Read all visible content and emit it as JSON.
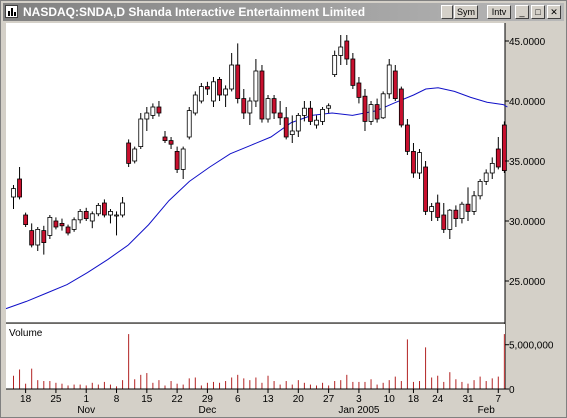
{
  "window": {
    "title": "NASDAQ:SNDA,D Shanda Interactive Entertainment Limited",
    "buttons": {
      "sym": "Sym",
      "intv": "Intv"
    }
  },
  "colors": {
    "up": "#ffffff",
    "down": "#c8102e",
    "ma": "#1010c8",
    "volume": "#b22222",
    "plot_bg": "#ffffff"
  },
  "chart_data": [
    {
      "type": "candlestick",
      "title": "NASDAQ:SNDA,D Shanda Interactive Entertainment Limited",
      "ylim": [
        21.5,
        46.5
      ],
      "y_ticks": [
        25,
        30,
        35,
        40,
        45
      ],
      "y_tick_labels": [
        "25.0000",
        "30.0000",
        "35.0000",
        "40.0000",
        "45.0000"
      ],
      "x_tick_labels": [
        "18",
        "25",
        "1",
        "8",
        "15",
        "22",
        "29",
        "6",
        "13",
        "20",
        "27",
        "3",
        "10",
        "18",
        "24",
        "31",
        "7"
      ],
      "x_tick_index": [
        2,
        7,
        12,
        17,
        22,
        27,
        32,
        37,
        42,
        47,
        52,
        57,
        62,
        66,
        70,
        75,
        80
      ],
      "month_labels": [
        "Nov",
        "Dec",
        "Jan 2005",
        "Feb"
      ],
      "month_index": [
        12,
        32,
        57,
        78
      ],
      "candles": [
        [
          32.0,
          33.0,
          31.0,
          32.7
        ],
        [
          33.5,
          34.5,
          31.8,
          32.0
        ],
        [
          30.5,
          30.7,
          29.5,
          29.7
        ],
        [
          29.2,
          29.8,
          27.8,
          28.0
        ],
        [
          28.0,
          29.5,
          27.5,
          29.3
        ],
        [
          29.2,
          29.6,
          27.2,
          28.2
        ],
        [
          28.8,
          30.5,
          28.5,
          30.3
        ],
        [
          30.0,
          30.3,
          29.3,
          29.5
        ],
        [
          29.8,
          30.2,
          29.2,
          29.6
        ],
        [
          29.5,
          29.7,
          28.8,
          29.0
        ],
        [
          29.3,
          30.3,
          29.1,
          30.1
        ],
        [
          30.1,
          31.0,
          29.8,
          30.8
        ],
        [
          30.8,
          31.1,
          30.0,
          30.2
        ],
        [
          30.0,
          30.8,
          29.4,
          30.6
        ],
        [
          30.6,
          31.5,
          30.4,
          31.3
        ],
        [
          31.5,
          31.8,
          30.3,
          30.5
        ],
        [
          30.5,
          31.0,
          29.8,
          30.8
        ],
        [
          30.5,
          30.8,
          28.8,
          30.5
        ],
        [
          30.5,
          32.0,
          30.3,
          31.5
        ],
        [
          36.5,
          36.8,
          34.5,
          34.8
        ],
        [
          35.0,
          36.2,
          34.8,
          36.0
        ],
        [
          36.2,
          39.0,
          36.0,
          38.5
        ],
        [
          38.5,
          39.5,
          37.5,
          39.0
        ],
        [
          38.8,
          39.8,
          38.5,
          39.5
        ],
        [
          39.5,
          40.0,
          38.7,
          39.0
        ],
        [
          37.0,
          37.5,
          36.5,
          36.7
        ],
        [
          36.7,
          37.0,
          36.0,
          36.4
        ],
        [
          35.8,
          36.2,
          34.0,
          34.3
        ],
        [
          34.3,
          36.2,
          33.5,
          36.0
        ],
        [
          37.0,
          39.5,
          36.8,
          39.2
        ],
        [
          39.0,
          40.8,
          38.8,
          40.5
        ],
        [
          40.0,
          41.5,
          39.8,
          41.2
        ],
        [
          41.2,
          41.6,
          40.5,
          41.0
        ],
        [
          40.0,
          42.0,
          39.5,
          41.6
        ],
        [
          41.8,
          42.0,
          40.0,
          40.5
        ],
        [
          40.5,
          41.3,
          39.5,
          41.0
        ],
        [
          41.0,
          44.0,
          40.8,
          43.0
        ],
        [
          43.0,
          44.8,
          39.8,
          40.2
        ],
        [
          40.2,
          41.0,
          38.5,
          39.0
        ],
        [
          39.0,
          40.3,
          38.0,
          40.0
        ],
        [
          40.0,
          43.5,
          39.5,
          42.5
        ],
        [
          42.5,
          43.0,
          38.2,
          38.5
        ],
        [
          38.5,
          40.5,
          38.2,
          40.2
        ],
        [
          40.2,
          40.5,
          38.5,
          39.0
        ],
        [
          39.0,
          40.0,
          38.0,
          38.6
        ],
        [
          38.6,
          39.5,
          36.8,
          37.0
        ],
        [
          37.2,
          38.8,
          36.5,
          37.5
        ],
        [
          37.5,
          39.0,
          37.0,
          38.8
        ],
        [
          38.8,
          40.0,
          38.3,
          39.4
        ],
        [
          39.4,
          40.0,
          38.0,
          38.3
        ],
        [
          38.0,
          38.8,
          37.7,
          38.4
        ],
        [
          38.3,
          39.5,
          38.0,
          39.3
        ],
        [
          39.4,
          39.8,
          39.0,
          39.6
        ],
        [
          42.2,
          44.2,
          42.0,
          43.8
        ],
        [
          43.8,
          45.5,
          43.0,
          44.5
        ],
        [
          45.0,
          45.5,
          43.0,
          43.5
        ],
        [
          43.5,
          44.0,
          41.0,
          41.3
        ],
        [
          41.5,
          42.0,
          39.8,
          40.3
        ],
        [
          40.4,
          41.0,
          37.5,
          38.3
        ],
        [
          38.3,
          40.0,
          38.0,
          39.7
        ],
        [
          39.7,
          40.2,
          38.2,
          38.5
        ],
        [
          38.6,
          40.8,
          38.5,
          40.6
        ],
        [
          40.6,
          43.5,
          40.2,
          43.0
        ],
        [
          42.5,
          43.0,
          40.0,
          40.2
        ],
        [
          41.0,
          41.2,
          37.8,
          38.0
        ],
        [
          38.0,
          38.5,
          35.5,
          35.8
        ],
        [
          35.8,
          36.5,
          33.6,
          34.0
        ],
        [
          34.0,
          36.0,
          33.5,
          35.7
        ],
        [
          34.5,
          35.0,
          30.5,
          30.8
        ],
        [
          30.8,
          31.5,
          30.0,
          31.2
        ],
        [
          31.5,
          32.2,
          30.0,
          30.3
        ],
        [
          30.5,
          31.5,
          29.0,
          29.3
        ],
        [
          29.3,
          31.0,
          28.5,
          30.9
        ],
        [
          30.9,
          31.3,
          29.5,
          30.2
        ],
        [
          30.2,
          31.6,
          29.8,
          31.4
        ],
        [
          31.4,
          32.8,
          30.0,
          30.8
        ],
        [
          30.8,
          32.5,
          30.5,
          32.1
        ],
        [
          32.1,
          33.5,
          31.8,
          33.3
        ],
        [
          33.3,
          34.3,
          33.0,
          34.0
        ],
        [
          34.0,
          35.3,
          33.5,
          34.8
        ],
        [
          36.0,
          37.0,
          34.3,
          34.5
        ],
        [
          38.0,
          38.3,
          34.0,
          34.2
        ]
      ],
      "moving_average": [
        [
          0,
          22.7
        ],
        [
          5,
          23.3
        ],
        [
          10,
          24.0
        ],
        [
          15,
          24.7
        ],
        [
          20,
          25.7
        ],
        [
          25,
          26.8
        ],
        [
          30,
          28.0
        ],
        [
          35,
          29.7
        ],
        [
          40,
          31.7
        ],
        [
          45,
          33.3
        ],
        [
          50,
          34.5
        ],
        [
          55,
          35.6
        ],
        [
          60,
          36.3
        ],
        [
          65,
          37.0
        ],
        [
          70,
          38.2
        ],
        [
          75,
          38.8
        ],
        [
          80,
          39.0
        ],
        [
          85,
          38.8
        ],
        [
          88,
          39.0
        ],
        [
          91,
          39.2
        ],
        [
          95,
          39.8
        ],
        [
          100,
          40.5
        ],
        [
          103,
          41.0
        ],
        [
          106,
          41.1
        ],
        [
          110,
          40.8
        ],
        [
          114,
          40.3
        ],
        [
          118,
          39.9
        ],
        [
          122,
          39.7
        ],
        [
          123,
          39.5
        ]
      ],
      "moving_average_count": 124,
      "moving_average_start": -41
    },
    {
      "type": "bar",
      "title": "Volume",
      "ylim": [
        0,
        7000000
      ],
      "y_ticks": [
        0,
        5000000
      ],
      "y_tick_labels": [
        "0",
        "5,000,000"
      ],
      "values": [
        1500000,
        2200000,
        600000,
        2300000,
        1000000,
        900000,
        900000,
        700000,
        600000,
        400000,
        500000,
        500000,
        400000,
        700000,
        500000,
        800000,
        500000,
        300000,
        1000000,
        6200000,
        1100000,
        1600000,
        1800000,
        700000,
        1000000,
        400000,
        900000,
        600000,
        500000,
        1200000,
        1300000,
        400000,
        700000,
        800000,
        700000,
        900000,
        1300000,
        1600000,
        1200000,
        1000000,
        1300000,
        700000,
        1500000,
        900000,
        500000,
        900000,
        500000,
        1000000,
        700000,
        500000,
        400000,
        700000,
        400000,
        900000,
        1000000,
        1600000,
        800000,
        800000,
        800000,
        1100000,
        500000,
        700000,
        1000000,
        1400000,
        900000,
        5600000,
        800000,
        900000,
        4700000,
        1300000,
        1500000,
        800000,
        1900000,
        1100000,
        800000,
        600000,
        1000000,
        1400000,
        900000,
        1200000,
        1400000,
        6200000
      ]
    }
  ]
}
